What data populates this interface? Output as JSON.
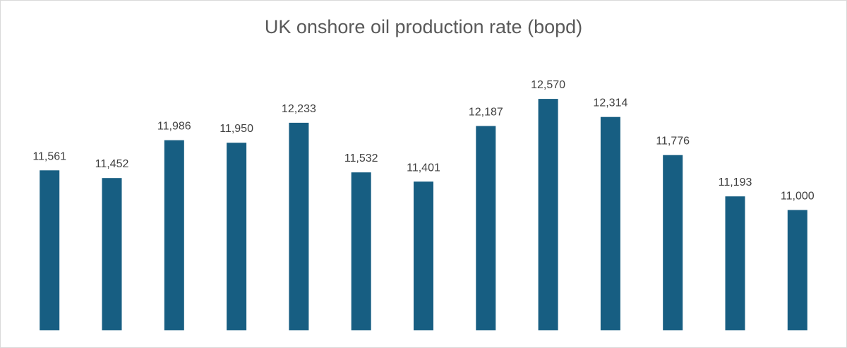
{
  "chart_data": {
    "type": "bar",
    "title": "UK onshore oil production rate (bopd)",
    "categories": [
      "",
      "",
      "",
      "",
      "",
      "",
      "",
      "",
      "",
      "",
      "",
      "",
      ""
    ],
    "values": [
      11561,
      11452,
      11986,
      11950,
      12233,
      11532,
      11401,
      12187,
      12570,
      12314,
      11776,
      11193,
      11000
    ],
    "data_labels": [
      "11,561",
      "11,452",
      "11,986",
      "11,950",
      "12,233",
      "11,532",
      "11,401",
      "12,187",
      "12,570",
      "12,314",
      "11,776",
      "11,193",
      "11,000"
    ],
    "xlabel": "",
    "ylabel": "",
    "ylim": [
      9300,
      12800
    ],
    "grid": false,
    "legend": "none",
    "bar_color": "#175E82"
  }
}
